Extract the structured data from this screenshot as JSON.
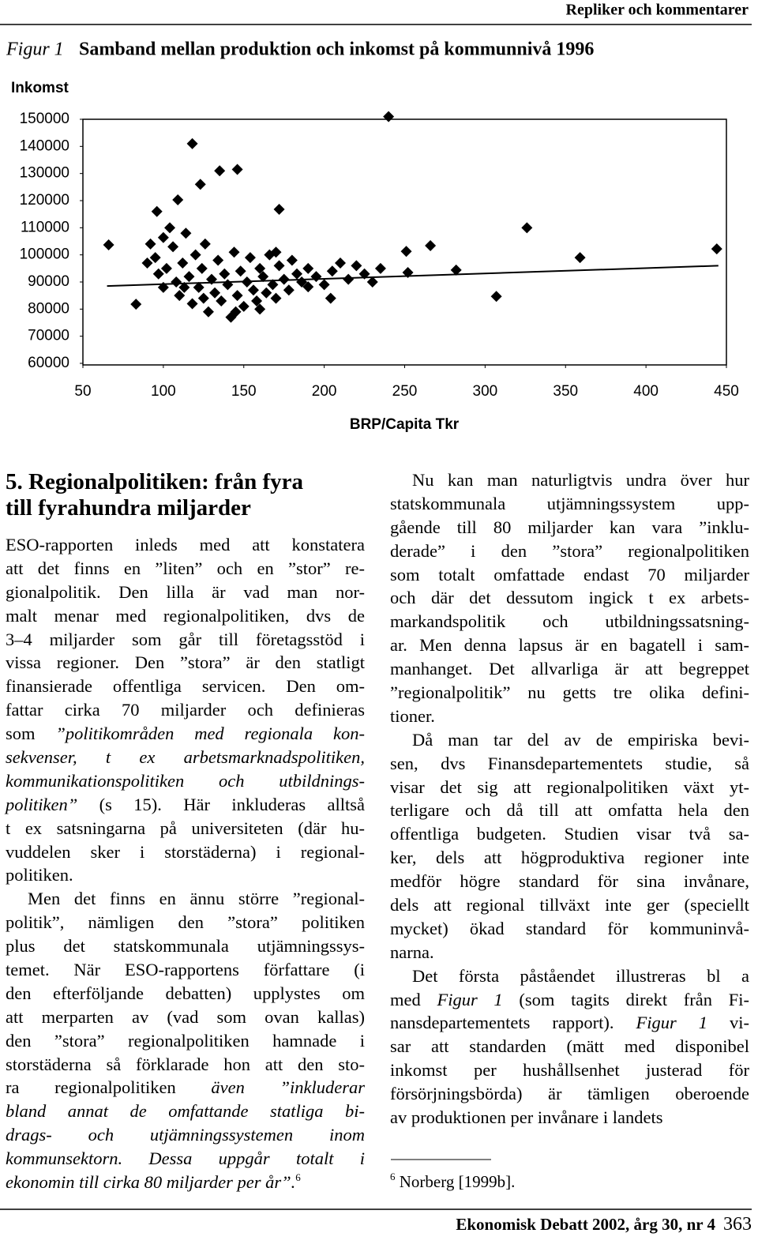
{
  "header": {
    "running_title": "Repliker och kommentarer"
  },
  "figure": {
    "label": "Figur 1",
    "caption": "Samband mellan produktion och inkomst på kommunnivå 1996"
  },
  "chart_data": {
    "type": "scatter",
    "y_label": "Inkomst",
    "x_label": "BRP/Capita Tkr",
    "color": "#000000",
    "grid": false,
    "xlim": [
      50,
      450
    ],
    "xticks": [
      50,
      100,
      150,
      200,
      250,
      300,
      350,
      400,
      450
    ],
    "ylim": [
      60000,
      150000
    ],
    "yticks": [
      60000,
      70000,
      80000,
      90000,
      100000,
      110000,
      120000,
      130000,
      140000,
      150000
    ],
    "x": [
      66,
      83,
      96,
      100,
      109,
      118,
      123,
      135,
      146,
      172,
      240,
      251,
      266,
      326,
      444,
      359,
      307,
      282,
      252,
      190,
      204,
      90,
      92,
      95,
      97,
      100,
      102,
      104,
      106,
      108,
      110,
      112,
      114,
      116,
      118,
      120,
      122,
      124,
      126,
      128,
      130,
      132,
      134,
      136,
      138,
      140,
      142,
      144,
      146,
      148,
      150,
      152,
      154,
      156,
      158,
      160,
      162,
      164,
      166,
      168,
      170,
      172,
      175,
      178,
      180,
      183,
      186,
      190,
      195,
      200,
      205,
      210,
      215,
      220,
      225,
      230,
      235,
      170,
      160,
      145,
      125,
      113
    ],
    "values": [
      103700,
      81800,
      116000,
      106400,
      120300,
      141000,
      126000,
      131000,
      131500,
      116800,
      151000,
      101300,
      103400,
      110000,
      102200,
      99000,
      84700,
      94400,
      93500,
      88200,
      84000,
      97000,
      104000,
      99000,
      93000,
      88000,
      95000,
      110000,
      103000,
      90000,
      85000,
      97000,
      108000,
      92000,
      82000,
      100000,
      88000,
      95000,
      104000,
      79000,
      91000,
      86000,
      98000,
      83000,
      93000,
      89000,
      77000,
      101000,
      85000,
      94000,
      81000,
      90000,
      99000,
      87000,
      83000,
      95000,
      92000,
      86000,
      100000,
      89000,
      84000,
      96000,
      91000,
      87000,
      98000,
      93000,
      90000,
      95000,
      92000,
      89000,
      94000,
      97000,
      91000,
      96000,
      93000,
      90000,
      95000,
      101000,
      80000,
      79000,
      84000,
      88000
    ],
    "trendline": {
      "x": [
        65,
        445
      ],
      "y": [
        88500,
        96000
      ]
    }
  },
  "document": {
    "heading": [
      "5. Regionalpolitiken: från fyra",
      "till fyrahundra miljarder"
    ],
    "left_column": [
      {
        "indent": false,
        "lines": [
          "ESO-rapporten inleds med att konstatera",
          "att det finns en ”liten” och en ”stor” re-",
          "gionalpolitik. Den lilla är vad man nor-",
          "malt menar med regionalpolitiken, dvs de",
          "3–4 miljarder som går till företagsstöd i",
          "vissa regioner. Den ”stora” är den statligt",
          "finansierade offentliga servicen. Den om-",
          "fattar cirka 70 miljarder och definieras",
          [
            "som ",
            {
              "italic": "”politikområden med regionala kon-"
            }
          ],
          [
            {
              "italic": "sekvenser, t ex arbetsmarknadspolitiken,"
            }
          ],
          [
            {
              "italic": "kommunikationspolitiken och utbildnings-"
            }
          ],
          [
            {
              "italic": "politiken”"
            },
            " (s 15). Här inkluderas alltså"
          ],
          "t ex satsningarna på universiteten (där hu-",
          "vuddelen sker i storstäderna) i regional-",
          "politiken."
        ]
      },
      {
        "indent": true,
        "lines": [
          "Men det finns en ännu större ”regional-",
          "politik”, nämligen den ”stora” politiken",
          "plus det statskommunala utjämningssys-",
          "temet. När ESO-rapportens författare (i",
          "den efterföljande debatten) upplystes om",
          "att merparten av (vad som ovan kallas)",
          "den ”stora” regionalpolitiken hamnade i",
          "storstäderna så förklarade hon att den sto-",
          [
            "ra regionalpolitiken ",
            {
              "italic": "även ”inkluderar"
            }
          ],
          [
            {
              "italic": "bland annat de omfattande statliga bi-"
            }
          ],
          [
            {
              "italic": "drags- och utjämningssystemen inom"
            }
          ],
          [
            {
              "italic": "kommunsektorn. Dessa uppgår totalt i"
            }
          ],
          [
            {
              "italic": "ekonomin till cirka 80 miljarder per år”."
            },
            {
              "sup": "6"
            }
          ]
        ]
      }
    ],
    "right_column": [
      {
        "indent": true,
        "lines": [
          "Nu kan man naturligtvis undra över hur",
          "statskommunala utjämningssystem upp-",
          "gående till 80 miljarder kan vara ”inklu-",
          "derade” i den ”stora” regionalpolitiken",
          "som totalt omfattade endast 70 miljarder",
          "och där det dessutom ingick t ex arbets-",
          "markandspolitik och utbildningssatsning-",
          "ar. Men denna lapsus är en bagatell i sam-",
          "manhanget. Det allvarliga är att begreppet",
          "”regionalpolitik” nu getts tre olika defini-",
          "tioner."
        ]
      },
      {
        "indent": true,
        "lines": [
          "Då man tar del av de empiriska bevi-",
          "sen, dvs Finansdepartementets studie, så",
          "visar det sig att regionalpolitiken växt yt-",
          "terligare och då till att omfatta hela den",
          "offentliga budgeten. Studien visar två sa-",
          "ker, dels att högproduktiva regioner inte",
          "medför högre standard för sina invånare,",
          "dels att regional tillväxt inte ger (speciellt",
          "mycket) ökad standard för kommuninvå-",
          "narna."
        ]
      },
      {
        "indent": true,
        "lines": [
          "Det första påståendet illustreras bl a",
          [
            "med ",
            {
              "italic": "Figur 1"
            },
            " (som tagits direkt från Fi-"
          ],
          [
            "nansdepartementets rapport). ",
            {
              "italic": "Figur 1"
            },
            " vi-"
          ],
          "sar att standarden (mätt med disponibel",
          "inkomst per hushållsenhet justerad för",
          "försörjningsbörda) är tämligen oberoende",
          "av produktionen per invånare i landets"
        ]
      }
    ],
    "footnote": {
      "number": "6",
      "text": " Norberg [1999b]."
    }
  },
  "footer": {
    "journal": "Ekonomisk Debatt 2002, årg 30, nr 4",
    "page": "363"
  }
}
